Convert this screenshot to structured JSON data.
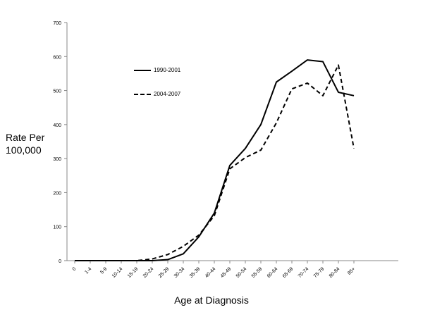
{
  "chart_data": {
    "type": "line",
    "title": "",
    "xlabel": "Age at Diagnosis",
    "ylabel_line1": "Rate Per",
    "ylabel_line2": "100,000",
    "categories": [
      "0",
      "1-4",
      "5-9",
      "10-14",
      "15-19",
      "20-24",
      "25-29",
      "30-34",
      "35-39",
      "40-44",
      "45-49",
      "50-54",
      "55-59",
      "60-64",
      "65-69",
      "70-74",
      "75-79",
      "80-84",
      "85+"
    ],
    "ylim": [
      0,
      700
    ],
    "yticks": [
      0,
      100,
      200,
      300,
      400,
      500,
      600,
      700
    ],
    "grid": false,
    "legend_position": "upper-left",
    "series": [
      {
        "name": "1990-2001",
        "style": "solid",
        "color": "#000000",
        "values": [
          0,
          0,
          0,
          0,
          0,
          0,
          3,
          20,
          70,
          140,
          280,
          330,
          400,
          525,
          557,
          590,
          585,
          495,
          485
        ]
      },
      {
        "name": "2004-2007",
        "style": "dashed",
        "color": "#000000",
        "values": [
          0,
          0,
          0,
          0,
          0,
          5,
          18,
          42,
          75,
          132,
          270,
          303,
          325,
          405,
          505,
          522,
          485,
          575,
          330
        ]
      }
    ]
  }
}
